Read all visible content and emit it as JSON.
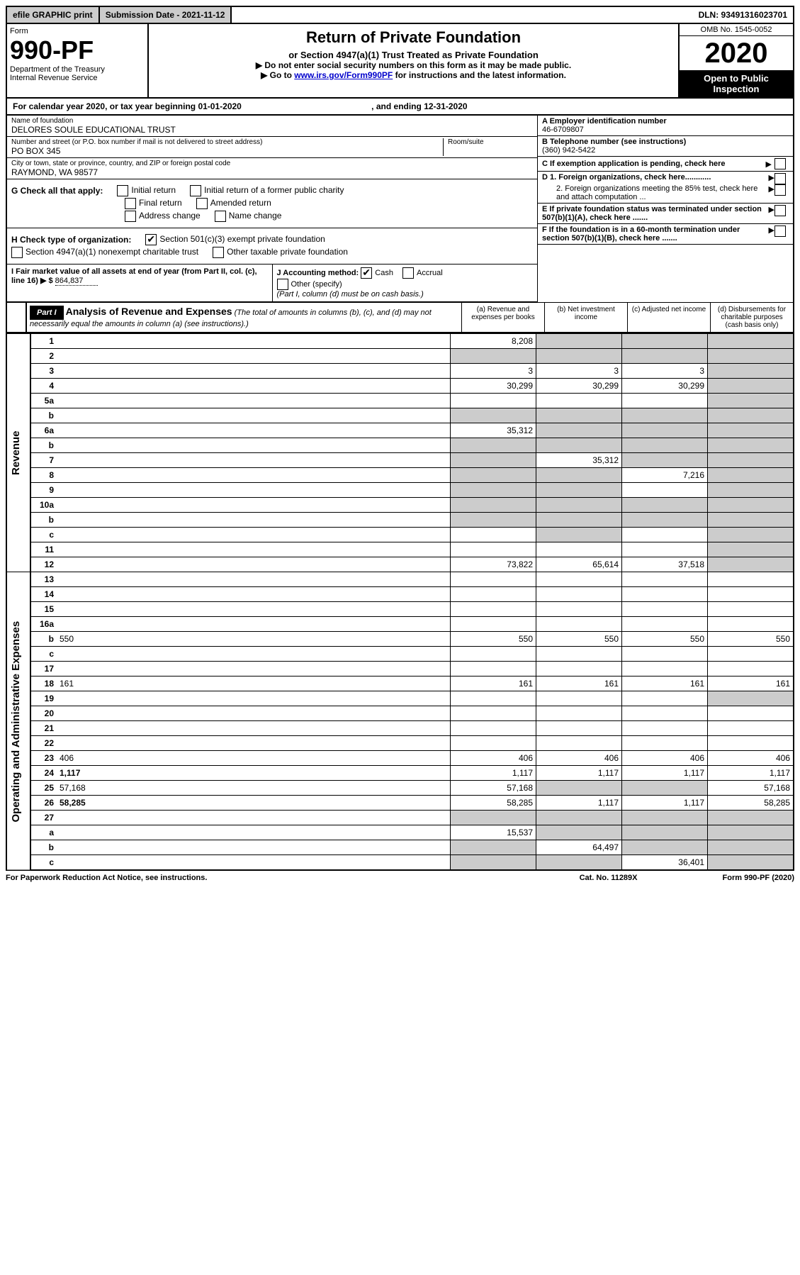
{
  "top": {
    "efile": "efile GRAPHIC print",
    "submission": "Submission Date - 2021-11-12",
    "dln": "DLN: 93491316023701"
  },
  "header": {
    "form_label": "Form",
    "form_number": "990-PF",
    "dept1": "Department of the Treasury",
    "dept2": "Internal Revenue Service",
    "title": "Return of Private Foundation",
    "subtitle": "or Section 4947(a)(1) Trust Treated as Private Foundation",
    "instr1": "▶ Do not enter social security numbers on this form as it may be made public.",
    "instr2_pre": "▶ Go to ",
    "instr2_link": "www.irs.gov/Form990PF",
    "instr2_post": " for instructions and the latest information.",
    "omb": "OMB No. 1545-0052",
    "year": "2020",
    "open": "Open to Public Inspection"
  },
  "calendar": {
    "text_pre": "For calendar year 2020, or tax year beginning ",
    "begin": "01-01-2020",
    "text_mid": " , and ending ",
    "end": "12-31-2020"
  },
  "info": {
    "name_label": "Name of foundation",
    "name": "DELORES SOULE EDUCATIONAL TRUST",
    "addr_label": "Number and street (or P.O. box number if mail is not delivered to street address)",
    "addr": "PO BOX 345",
    "room_label": "Room/suite",
    "city_label": "City or town, state or province, country, and ZIP or foreign postal code",
    "city": "RAYMOND, WA  98577",
    "a_label": "A Employer identification number",
    "a_val": "46-6709807",
    "b_label": "B Telephone number (see instructions)",
    "b_val": "(360) 942-5422",
    "c_label": "C If exemption application is pending, check here",
    "d1": "D 1. Foreign organizations, check here............",
    "d2": "2. Foreign organizations meeting the 85% test, check here and attach computation ...",
    "e": "E If private foundation status was terminated under section 507(b)(1)(A), check here .......",
    "f": "F If the foundation is in a 60-month termination under section 507(b)(1)(B), check here .......",
    "g_label": "G Check all that apply:",
    "g_initial": "Initial return",
    "g_initial_public": "Initial return of a former public charity",
    "g_final": "Final return",
    "g_amended": "Amended return",
    "g_addr": "Address change",
    "g_name": "Name change",
    "h_label": "H Check type of organization:",
    "h_501c3": "Section 501(c)(3) exempt private foundation",
    "h_4947": "Section 4947(a)(1) nonexempt charitable trust",
    "h_other": "Other taxable private foundation",
    "i_label": "I Fair market value of all assets at end of year (from Part II, col. (c), line 16) ▶ $",
    "i_val": "864,837",
    "j_label": "J Accounting method:",
    "j_cash": "Cash",
    "j_accrual": "Accrual",
    "j_other": "Other (specify)",
    "j_note": "(Part I, column (d) must be on cash basis.)"
  },
  "part1": {
    "label": "Part I",
    "title": "Analysis of Revenue and Expenses",
    "title_note": "(The total of amounts in columns (b), (c), and (d) may not necessarily equal the amounts in column (a) (see instructions).)",
    "col_a": "(a) Revenue and expenses per books",
    "col_b": "(b) Net investment income",
    "col_c": "(c) Adjusted net income",
    "col_d": "(d) Disbursements for charitable purposes (cash basis only)",
    "side_rev": "Revenue",
    "side_exp": "Operating and Administrative Expenses"
  },
  "rows": [
    {
      "n": "1",
      "d": "",
      "a": "8,208",
      "b": "",
      "c": "",
      "shade_b": true,
      "shade_c": true,
      "shade_d": true
    },
    {
      "n": "2",
      "d": "",
      "a": "",
      "b": "",
      "c": "",
      "shade_a": true,
      "shade_b": true,
      "shade_c": true,
      "shade_d": true
    },
    {
      "n": "3",
      "d": "",
      "a": "3",
      "b": "3",
      "c": "3",
      "shade_d": true
    },
    {
      "n": "4",
      "d": "",
      "a": "30,299",
      "b": "30,299",
      "c": "30,299",
      "shade_d": true
    },
    {
      "n": "5a",
      "d": "",
      "a": "",
      "b": "",
      "c": "",
      "shade_d": true
    },
    {
      "n": "b",
      "d": "",
      "a": "",
      "b": "",
      "c": "",
      "shade_a": true,
      "shade_b": true,
      "shade_c": true,
      "shade_d": true
    },
    {
      "n": "6a",
      "d": "",
      "a": "35,312",
      "b": "",
      "c": "",
      "shade_b": true,
      "shade_c": true,
      "shade_d": true
    },
    {
      "n": "b",
      "d": "",
      "a": "",
      "b": "",
      "c": "",
      "shade_a": true,
      "shade_b": true,
      "shade_c": true,
      "shade_d": true
    },
    {
      "n": "7",
      "d": "",
      "a": "",
      "b": "35,312",
      "c": "",
      "shade_a": true,
      "shade_c": true,
      "shade_d": true
    },
    {
      "n": "8",
      "d": "",
      "a": "",
      "b": "",
      "c": "7,216",
      "shade_a": true,
      "shade_b": true,
      "shade_d": true
    },
    {
      "n": "9",
      "d": "",
      "a": "",
      "b": "",
      "c": "",
      "shade_a": true,
      "shade_b": true,
      "shade_d": true
    },
    {
      "n": "10a",
      "d": "",
      "a": "",
      "b": "",
      "c": "",
      "shade_a": true,
      "shade_b": true,
      "shade_c": true,
      "shade_d": true
    },
    {
      "n": "b",
      "d": "",
      "a": "",
      "b": "",
      "c": "",
      "shade_a": true,
      "shade_b": true,
      "shade_c": true,
      "shade_d": true
    },
    {
      "n": "c",
      "d": "",
      "a": "",
      "b": "",
      "c": "",
      "shade_b": true,
      "shade_d": true
    },
    {
      "n": "11",
      "d": "",
      "a": "",
      "b": "",
      "c": "",
      "shade_d": true
    },
    {
      "n": "12",
      "d": "",
      "bold": true,
      "a": "73,822",
      "b": "65,614",
      "c": "37,518",
      "shade_d": true
    },
    {
      "n": "13",
      "d": "",
      "a": "",
      "b": "",
      "c": ""
    },
    {
      "n": "14",
      "d": "",
      "a": "",
      "b": "",
      "c": ""
    },
    {
      "n": "15",
      "d": "",
      "a": "",
      "b": "",
      "c": ""
    },
    {
      "n": "16a",
      "d": "",
      "a": "",
      "b": "",
      "c": ""
    },
    {
      "n": "b",
      "d": "550",
      "a": "550",
      "b": "550",
      "c": "550"
    },
    {
      "n": "c",
      "d": "",
      "a": "",
      "b": "",
      "c": ""
    },
    {
      "n": "17",
      "d": "",
      "a": "",
      "b": "",
      "c": ""
    },
    {
      "n": "18",
      "d": "161",
      "a": "161",
      "b": "161",
      "c": "161"
    },
    {
      "n": "19",
      "d": "",
      "a": "",
      "b": "",
      "c": "",
      "shade_d": true
    },
    {
      "n": "20",
      "d": "",
      "a": "",
      "b": "",
      "c": ""
    },
    {
      "n": "21",
      "d": "",
      "a": "",
      "b": "",
      "c": ""
    },
    {
      "n": "22",
      "d": "",
      "a": "",
      "b": "",
      "c": ""
    },
    {
      "n": "23",
      "d": "406",
      "a": "406",
      "b": "406",
      "c": "406"
    },
    {
      "n": "24",
      "d": "1,117",
      "bold": true,
      "a": "1,117",
      "b": "1,117",
      "c": "1,117"
    },
    {
      "n": "25",
      "d": "57,168",
      "a": "57,168",
      "b": "",
      "c": "",
      "shade_b": true,
      "shade_c": true
    },
    {
      "n": "26",
      "d": "58,285",
      "bold": true,
      "a": "58,285",
      "b": "1,117",
      "c": "1,117"
    },
    {
      "n": "27",
      "d": "",
      "a": "",
      "b": "",
      "c": "",
      "shade_a": true,
      "shade_b": true,
      "shade_c": true,
      "shade_d": true
    },
    {
      "n": "a",
      "d": "",
      "bold": true,
      "a": "15,537",
      "b": "",
      "c": "",
      "shade_b": true,
      "shade_c": true,
      "shade_d": true
    },
    {
      "n": "b",
      "d": "",
      "bold": true,
      "a": "",
      "b": "64,497",
      "c": "",
      "shade_a": true,
      "shade_c": true,
      "shade_d": true
    },
    {
      "n": "c",
      "d": "",
      "bold": true,
      "a": "",
      "b": "",
      "c": "36,401",
      "shade_a": true,
      "shade_b": true,
      "shade_d": true
    }
  ],
  "footer": {
    "left": "For Paperwork Reduction Act Notice, see instructions.",
    "mid": "Cat. No. 11289X",
    "right": "Form 990-PF (2020)"
  }
}
